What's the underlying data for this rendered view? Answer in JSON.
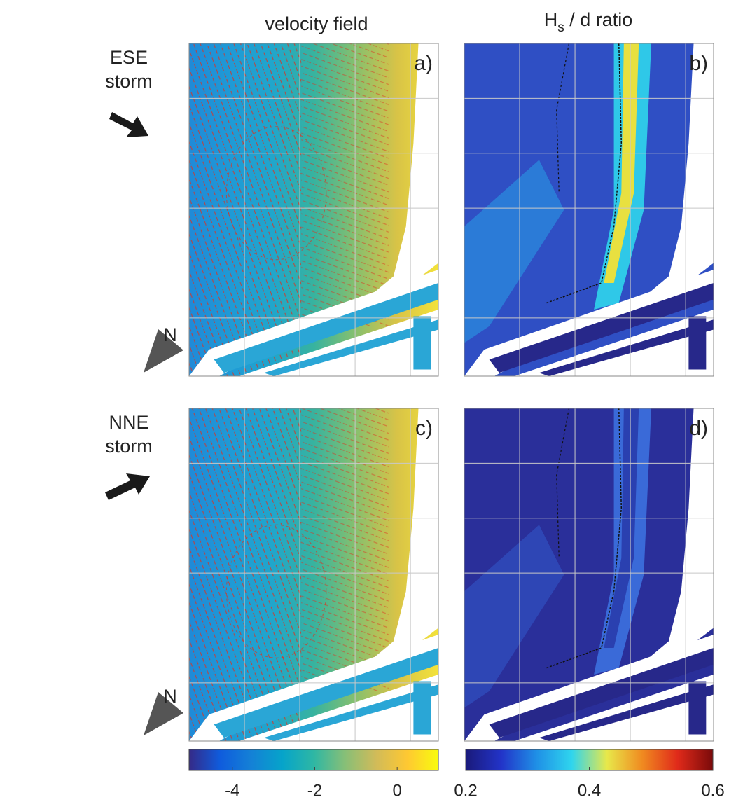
{
  "column_titles": [
    {
      "text": "velocity field"
    },
    {
      "main": "H",
      "sub": "s",
      "rest": " / d ratio"
    }
  ],
  "row_labels": [
    {
      "lines": [
        "ESE",
        "storm"
      ]
    },
    {
      "lines": [
        "NNE",
        "storm"
      ]
    }
  ],
  "panels": [
    {
      "label": "a)",
      "kind": "velocity"
    },
    {
      "label": "b)",
      "kind": "ratio"
    },
    {
      "label": "c)",
      "kind": "velocity"
    },
    {
      "label": "d)",
      "kind": "ratio"
    }
  ],
  "north_labels": [
    "N",
    "N"
  ],
  "colorbars": [
    {
      "lim": [
        -5.05,
        1
      ],
      "ticks": [
        -4,
        -2,
        0
      ],
      "colormap": [
        "#352a87",
        "#0f5cdd",
        "#1481d6",
        "#06a4ca",
        "#2eb7a4",
        "#87bf77",
        "#d1bb59",
        "#fec832",
        "#f9fb0e"
      ]
    },
    {
      "lim": [
        0.2,
        0.6
      ],
      "ticks": [
        0.2,
        0.4,
        0.6
      ],
      "colormap": [
        "#1a1a7a",
        "#2233c8",
        "#1f8fe6",
        "#2fd5ee",
        "#e8e84a",
        "#f08a20",
        "#e02a1a",
        "#7a0a0a"
      ]
    }
  ]
}
